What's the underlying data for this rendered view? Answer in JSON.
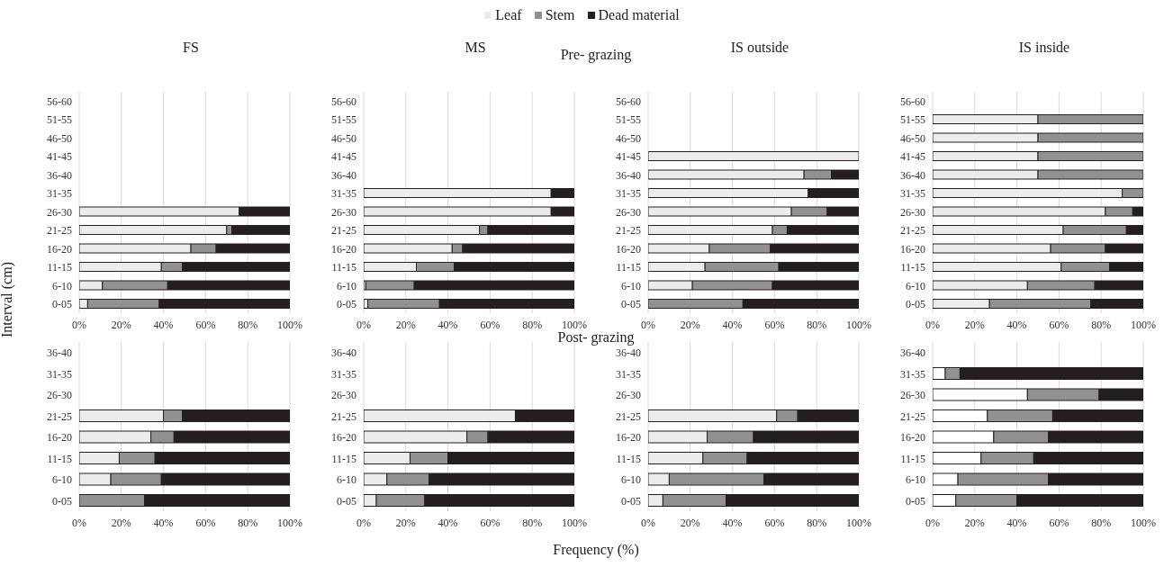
{
  "chart_data": [
    {
      "type": "bar",
      "orientation": "horizontal",
      "stacked": true,
      "title": "FS",
      "ylabel": "Interval (cm)",
      "legend": "top",
      "grid": "x",
      "xlim": [
        0,
        100
      ],
      "xticks": [
        {
          "value": 0,
          "label": "0%"
        },
        {
          "value": 20,
          "label": "20%"
        },
        {
          "value": 40,
          "label": "40%"
        },
        {
          "value": 60,
          "label": "60%"
        },
        {
          "value": 80,
          "label": "80%"
        },
        {
          "value": 100,
          "label": "100%"
        }
      ],
      "categories": [
        "56-60",
        "51-55",
        "46-50",
        "41-45",
        "36-40",
        "31-35",
        "26-30",
        "21-25",
        "16-20",
        "11-15",
        "6-10",
        "0-05"
      ],
      "series": [
        {
          "name": "Leaf",
          "color": "#ececec",
          "values": [
            null,
            null,
            null,
            null,
            null,
            null,
            76,
            70,
            53,
            39,
            11,
            4
          ]
        },
        {
          "name": "Stem",
          "color": "#919191",
          "values": [
            null,
            null,
            null,
            null,
            null,
            null,
            0,
            2.5,
            12,
            10,
            31,
            34
          ]
        },
        {
          "name": "Dead material",
          "color": "#231f20",
          "values": [
            null,
            null,
            null,
            null,
            null,
            null,
            24,
            27.5,
            35,
            51,
            58,
            62
          ]
        }
      ]
    },
    {
      "type": "bar",
      "orientation": "horizontal",
      "stacked": true,
      "title": "MS",
      "annotations": [
        "Pre- grazing"
      ],
      "grid": "x",
      "xlim": [
        0,
        100
      ],
      "xticks": [
        {
          "value": 0,
          "label": "0%"
        },
        {
          "value": 20,
          "label": "20%"
        },
        {
          "value": 40,
          "label": "40%"
        },
        {
          "value": 60,
          "label": "60%"
        },
        {
          "value": 80,
          "label": "80%"
        },
        {
          "value": 100,
          "label": "100%"
        }
      ],
      "categories": [
        "56-60",
        "51-55",
        "46-50",
        "41-45",
        "36-40",
        "31-35",
        "26-30",
        "21-25",
        "16-20",
        "11-15",
        "6-10",
        "0-05"
      ],
      "series": [
        {
          "color": "#ececec",
          "values": [
            null,
            null,
            null,
            null,
            null,
            89,
            89,
            55,
            42,
            25,
            1,
            2
          ]
        },
        {
          "color": "#919191",
          "values": [
            null,
            null,
            null,
            null,
            null,
            0,
            0,
            4,
            5,
            18,
            23,
            34
          ]
        },
        {
          "color": "#231f20",
          "values": [
            null,
            null,
            null,
            null,
            null,
            11,
            11,
            41,
            53,
            57,
            76,
            64
          ]
        }
      ]
    },
    {
      "type": "bar",
      "orientation": "horizontal",
      "stacked": true,
      "title": "IS outside",
      "grid": "x",
      "xlim": [
        0,
        100
      ],
      "xticks": [
        {
          "value": 0,
          "label": "0%"
        },
        {
          "value": 20,
          "label": "20%"
        },
        {
          "value": 40,
          "label": "40%"
        },
        {
          "value": 60,
          "label": "60%"
        },
        {
          "value": 80,
          "label": "80%"
        },
        {
          "value": 100,
          "label": "100%"
        }
      ],
      "categories": [
        "56-60",
        "51-55",
        "46-50",
        "41-45",
        "36-40",
        "31-35",
        "26-30",
        "21-25",
        "16-20",
        "11-15",
        "6-10",
        "0-05"
      ],
      "series": [
        {
          "color": "#ececec",
          "values": [
            null,
            null,
            null,
            100,
            74,
            76,
            68,
            59,
            29,
            27,
            21,
            0
          ]
        },
        {
          "color": "#919191",
          "values": [
            null,
            null,
            null,
            0,
            13,
            0,
            17,
            7,
            29,
            35,
            38,
            45
          ]
        },
        {
          "color": "#231f20",
          "values": [
            null,
            null,
            null,
            0,
            13,
            24,
            15,
            34,
            42,
            38,
            41,
            55
          ]
        }
      ]
    },
    {
      "type": "bar",
      "orientation": "horizontal",
      "stacked": true,
      "title": "IS inside",
      "grid": "x",
      "xlim": [
        0,
        100
      ],
      "xticks": [
        {
          "value": 0,
          "label": "0%"
        },
        {
          "value": 20,
          "label": "20%"
        },
        {
          "value": 40,
          "label": "40%"
        },
        {
          "value": 60,
          "label": "60%"
        },
        {
          "value": 80,
          "label": "80%"
        },
        {
          "value": 100,
          "label": "100%"
        }
      ],
      "categories": [
        "56-60",
        "51-55",
        "46-50",
        "41-45",
        "36-40",
        "31-35",
        "26-30",
        "21-25",
        "16-20",
        "11-15",
        "6-10",
        "0-05"
      ],
      "series": [
        {
          "color": "#ececec",
          "values": [
            null,
            50,
            50,
            50,
            50,
            90,
            82,
            62,
            56,
            61,
            45,
            27
          ]
        },
        {
          "color": "#919191",
          "values": [
            null,
            50,
            50,
            50,
            50,
            10,
            13,
            30,
            26,
            23,
            32,
            48
          ]
        },
        {
          "color": "#231f20",
          "values": [
            null,
            0,
            0,
            0,
            0,
            0,
            5,
            8,
            18,
            16,
            23,
            25
          ]
        }
      ]
    },
    {
      "type": "bar",
      "orientation": "horizontal",
      "stacked": true,
      "grid": "x",
      "xlim": [
        0,
        100
      ],
      "xticks": [
        {
          "value": 0,
          "label": "0%"
        },
        {
          "value": 20,
          "label": "20%"
        },
        {
          "value": 40,
          "label": "40%"
        },
        {
          "value": 60,
          "label": "60%"
        },
        {
          "value": 80,
          "label": "80%"
        },
        {
          "value": 100,
          "label": "100%"
        }
      ],
      "categories": [
        "36-40",
        "31-35",
        "26-30",
        "21-25",
        "16-20",
        "11-15",
        "6-10",
        "0-05"
      ],
      "series": [
        {
          "color": "#ececec",
          "values": [
            null,
            null,
            null,
            40,
            34,
            19,
            15,
            0
          ]
        },
        {
          "color": "#919191",
          "values": [
            null,
            null,
            null,
            9,
            11,
            17,
            24,
            31
          ]
        },
        {
          "color": "#231f20",
          "values": [
            null,
            null,
            null,
            51,
            55,
            64,
            61,
            69
          ]
        }
      ]
    },
    {
      "type": "bar",
      "orientation": "horizontal",
      "stacked": true,
      "annotations": [
        "Post- grazing"
      ],
      "xlabel": "Frequency (%)",
      "grid": "x",
      "xlim": [
        0,
        100
      ],
      "xticks": [
        {
          "value": 0,
          "label": "0%"
        },
        {
          "value": 20,
          "label": "20%"
        },
        {
          "value": 40,
          "label": "40%"
        },
        {
          "value": 60,
          "label": "60%"
        },
        {
          "value": 80,
          "label": "80%"
        },
        {
          "value": 100,
          "label": "100%"
        }
      ],
      "categories": [
        "36-40",
        "31-35",
        "26-30",
        "21-25",
        "16-20",
        "11-15",
        "6-10",
        "0-05"
      ],
      "series": [
        {
          "color": "#ececec",
          "values": [
            null,
            null,
            null,
            72,
            49,
            22,
            11,
            6
          ]
        },
        {
          "color": "#919191",
          "values": [
            null,
            null,
            null,
            0,
            10,
            18,
            20,
            23
          ]
        },
        {
          "color": "#231f20",
          "values": [
            null,
            null,
            null,
            28,
            41,
            60,
            69,
            71
          ]
        }
      ]
    },
    {
      "type": "bar",
      "orientation": "horizontal",
      "stacked": true,
      "grid": "x",
      "xlim": [
        0,
        100
      ],
      "xticks": [
        {
          "value": 0,
          "label": "0%"
        },
        {
          "value": 20,
          "label": "20%"
        },
        {
          "value": 40,
          "label": "40%"
        },
        {
          "value": 60,
          "label": "60%"
        },
        {
          "value": 80,
          "label": "80%"
        },
        {
          "value": 100,
          "label": "100%"
        }
      ],
      "categories": [
        "36-40",
        "31-35",
        "26-30",
        "21-25",
        "16-20",
        "11-15",
        "6-10",
        "0-05"
      ],
      "series": [
        {
          "color": "#ececec",
          "values": [
            null,
            null,
            null,
            61,
            28,
            26,
            10,
            7
          ]
        },
        {
          "color": "#919191",
          "values": [
            null,
            null,
            null,
            10,
            22,
            21,
            45,
            30
          ]
        },
        {
          "color": "#231f20",
          "values": [
            null,
            null,
            null,
            29,
            50,
            53,
            45,
            63
          ]
        }
      ]
    },
    {
      "type": "bar",
      "orientation": "horizontal",
      "stacked": true,
      "grid": "x",
      "xlim": [
        0,
        100
      ],
      "xticks": [
        {
          "value": 0,
          "label": "0%"
        },
        {
          "value": 20,
          "label": "20%"
        },
        {
          "value": 40,
          "label": "40%"
        },
        {
          "value": 60,
          "label": "60%"
        },
        {
          "value": 80,
          "label": "80%"
        },
        {
          "value": 100,
          "label": "100%"
        }
      ],
      "categories": [
        "36-40",
        "31-35",
        "26-30",
        "21-25",
        "16-20",
        "11-15",
        "6-10",
        "0-05"
      ],
      "series": [
        {
          "color": "#ffffff",
          "values": [
            null,
            6,
            45,
            26,
            29,
            23,
            12,
            11
          ]
        },
        {
          "color": "#919191",
          "values": [
            null,
            7,
            34,
            31,
            26,
            25,
            43,
            29
          ]
        },
        {
          "color": "#231f20",
          "values": [
            null,
            87,
            21,
            43,
            45,
            52,
            45,
            60
          ]
        }
      ]
    }
  ]
}
